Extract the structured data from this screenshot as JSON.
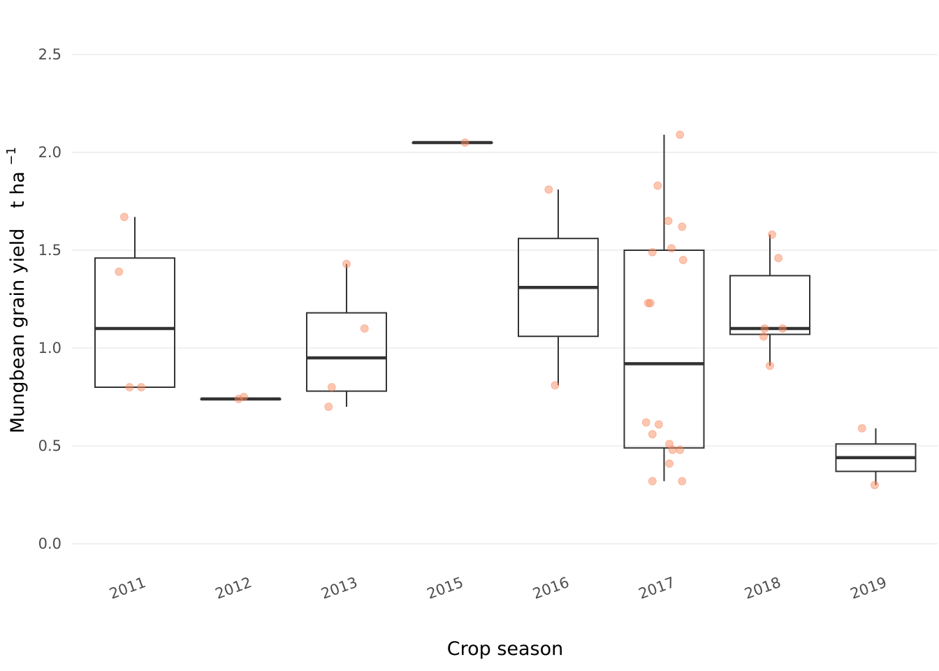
{
  "chart_data": {
    "type": "box",
    "xlabel": "Crop season",
    "ylabel": "Mungbean grain yield",
    "ylabel_unit_base": "t ha",
    "ylabel_unit_exp": "−1",
    "ylim": [
      -0.1,
      2.6
    ],
    "yticks": [
      "0.0",
      "0.5",
      "1.0",
      "1.5",
      "2.0",
      "2.5"
    ],
    "ytick_values": [
      0.0,
      0.5,
      1.0,
      1.5,
      2.0,
      2.5
    ],
    "grid": "horizontal",
    "point_color": "#fc8d62",
    "categories": [
      "2011",
      "2012",
      "2013",
      "2015",
      "2016",
      "2017",
      "2018",
      "2019"
    ],
    "boxes": [
      {
        "category": "2011",
        "min": 0.8,
        "q1": 0.8,
        "median": 1.1,
        "q3": 1.46,
        "max": 1.67,
        "points": [
          [
            -0.1,
            1.67
          ],
          [
            -0.15,
            1.39
          ],
          [
            -0.05,
            0.8
          ],
          [
            0.06,
            0.8
          ]
        ]
      },
      {
        "category": "2012",
        "min": 0.74,
        "q1": 0.74,
        "median": 0.74,
        "q3": 0.74,
        "max": 0.74,
        "points": [
          [
            -0.02,
            0.74
          ],
          [
            0.03,
            0.75
          ]
        ]
      },
      {
        "category": "2013",
        "min": 0.7,
        "q1": 0.78,
        "median": 0.95,
        "q3": 1.18,
        "max": 1.43,
        "points": [
          [
            0.0,
            1.43
          ],
          [
            0.17,
            1.1
          ],
          [
            -0.14,
            0.8
          ],
          [
            -0.17,
            0.7
          ]
        ]
      },
      {
        "category": "2015",
        "min": 2.05,
        "q1": 2.05,
        "median": 2.05,
        "q3": 2.05,
        "max": 2.05,
        "points": [
          [
            0.12,
            2.05
          ]
        ]
      },
      {
        "category": "2016",
        "min": 0.81,
        "q1": 1.06,
        "median": 1.31,
        "q3": 1.56,
        "max": 1.81,
        "points": [
          [
            -0.09,
            1.81
          ],
          [
            -0.03,
            0.81
          ]
        ]
      },
      {
        "category": "2017",
        "min": 0.32,
        "q1": 0.49,
        "median": 0.92,
        "q3": 1.5,
        "max": 2.09,
        "points": [
          [
            0.15,
            2.09
          ],
          [
            -0.06,
            1.83
          ],
          [
            0.04,
            1.65
          ],
          [
            0.17,
            1.62
          ],
          [
            0.07,
            1.51
          ],
          [
            -0.11,
            1.49
          ],
          [
            0.18,
            1.45
          ],
          [
            -0.15,
            1.23
          ],
          [
            -0.13,
            1.23
          ],
          [
            -0.17,
            0.62
          ],
          [
            -0.05,
            0.61
          ],
          [
            -0.11,
            0.56
          ],
          [
            0.05,
            0.51
          ],
          [
            0.08,
            0.48
          ],
          [
            0.15,
            0.48
          ],
          [
            0.05,
            0.41
          ],
          [
            -0.11,
            0.32
          ],
          [
            0.17,
            0.32
          ]
        ]
      },
      {
        "category": "2018",
        "min": 0.91,
        "q1": 1.07,
        "median": 1.1,
        "q3": 1.37,
        "max": 1.58,
        "points": [
          [
            0.02,
            1.58
          ],
          [
            0.08,
            1.46
          ],
          [
            -0.05,
            1.1
          ],
          [
            0.12,
            1.1
          ],
          [
            -0.06,
            1.06
          ],
          [
            0.0,
            0.91
          ]
        ]
      },
      {
        "category": "2019",
        "min": 0.3,
        "q1": 0.37,
        "median": 0.44,
        "q3": 0.51,
        "max": 0.59,
        "points": [
          [
            -0.13,
            0.59
          ],
          [
            -0.01,
            0.3
          ]
        ]
      }
    ]
  }
}
